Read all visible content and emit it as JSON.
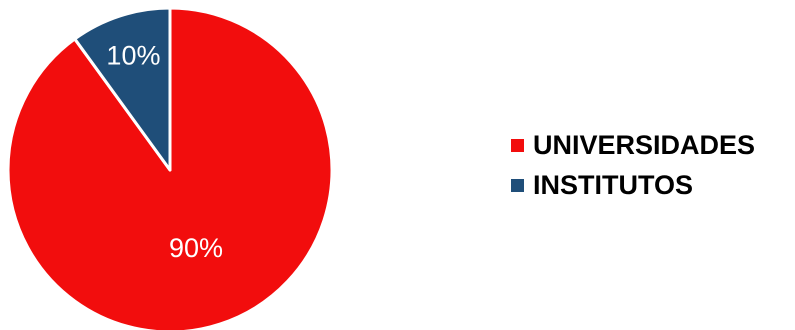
{
  "chart_data": {
    "type": "pie",
    "title": "",
    "slices": [
      {
        "label": "UNIVERSIDADES",
        "value": 90,
        "display": "90%",
        "color": "#f20d0d"
      },
      {
        "label": "INSTITUTOS",
        "value": 10,
        "display": "10%",
        "color": "#1f4e79"
      }
    ],
    "legend_position": "right",
    "start_angle": "12 o'clock, clockwise"
  }
}
